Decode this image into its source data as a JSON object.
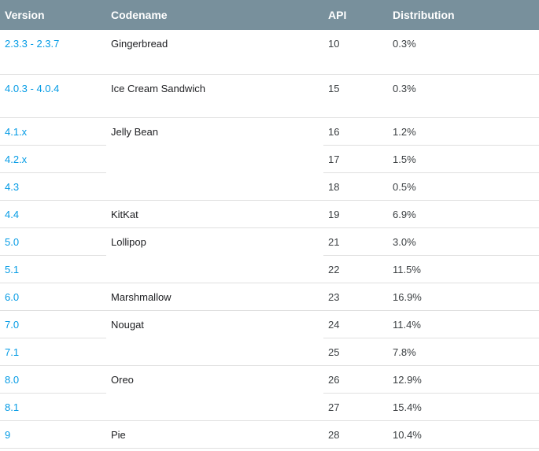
{
  "header": {
    "version": "Version",
    "codename": "Codename",
    "api": "API",
    "distribution": "Distribution"
  },
  "rows": [
    {
      "version": "2.3.3 - 2.3.7",
      "codename": "Gingerbread",
      "api": "10",
      "distribution": "0.3%"
    },
    {
      "version": "4.0.3 - 4.0.4",
      "codename": "Ice Cream Sandwich",
      "api": "15",
      "distribution": "0.3%"
    },
    {
      "version": "4.1.x",
      "codename": "Jelly Bean",
      "api": "16",
      "distribution": "1.2%"
    },
    {
      "version": "4.2.x",
      "codename": "",
      "api": "17",
      "distribution": "1.5%"
    },
    {
      "version": "4.3",
      "codename": "",
      "api": "18",
      "distribution": "0.5%"
    },
    {
      "version": "4.4",
      "codename": "KitKat",
      "api": "19",
      "distribution": "6.9%"
    },
    {
      "version": "5.0",
      "codename": "Lollipop",
      "api": "21",
      "distribution": "3.0%"
    },
    {
      "version": "5.1",
      "codename": "",
      "api": "22",
      "distribution": "11.5%"
    },
    {
      "version": "6.0",
      "codename": "Marshmallow",
      "api": "23",
      "distribution": "16.9%"
    },
    {
      "version": "7.0",
      "codename": "Nougat",
      "api": "24",
      "distribution": "11.4%"
    },
    {
      "version": "7.1",
      "codename": "",
      "api": "25",
      "distribution": "7.8%"
    },
    {
      "version": "8.0",
      "codename": "Oreo",
      "api": "26",
      "distribution": "12.9%"
    },
    {
      "version": "8.1",
      "codename": "",
      "api": "27",
      "distribution": "15.4%"
    },
    {
      "version": "9",
      "codename": "Pie",
      "api": "28",
      "distribution": "10.4%"
    }
  ],
  "colors": {
    "header_bg": "#78909c",
    "link": "#039be5"
  }
}
